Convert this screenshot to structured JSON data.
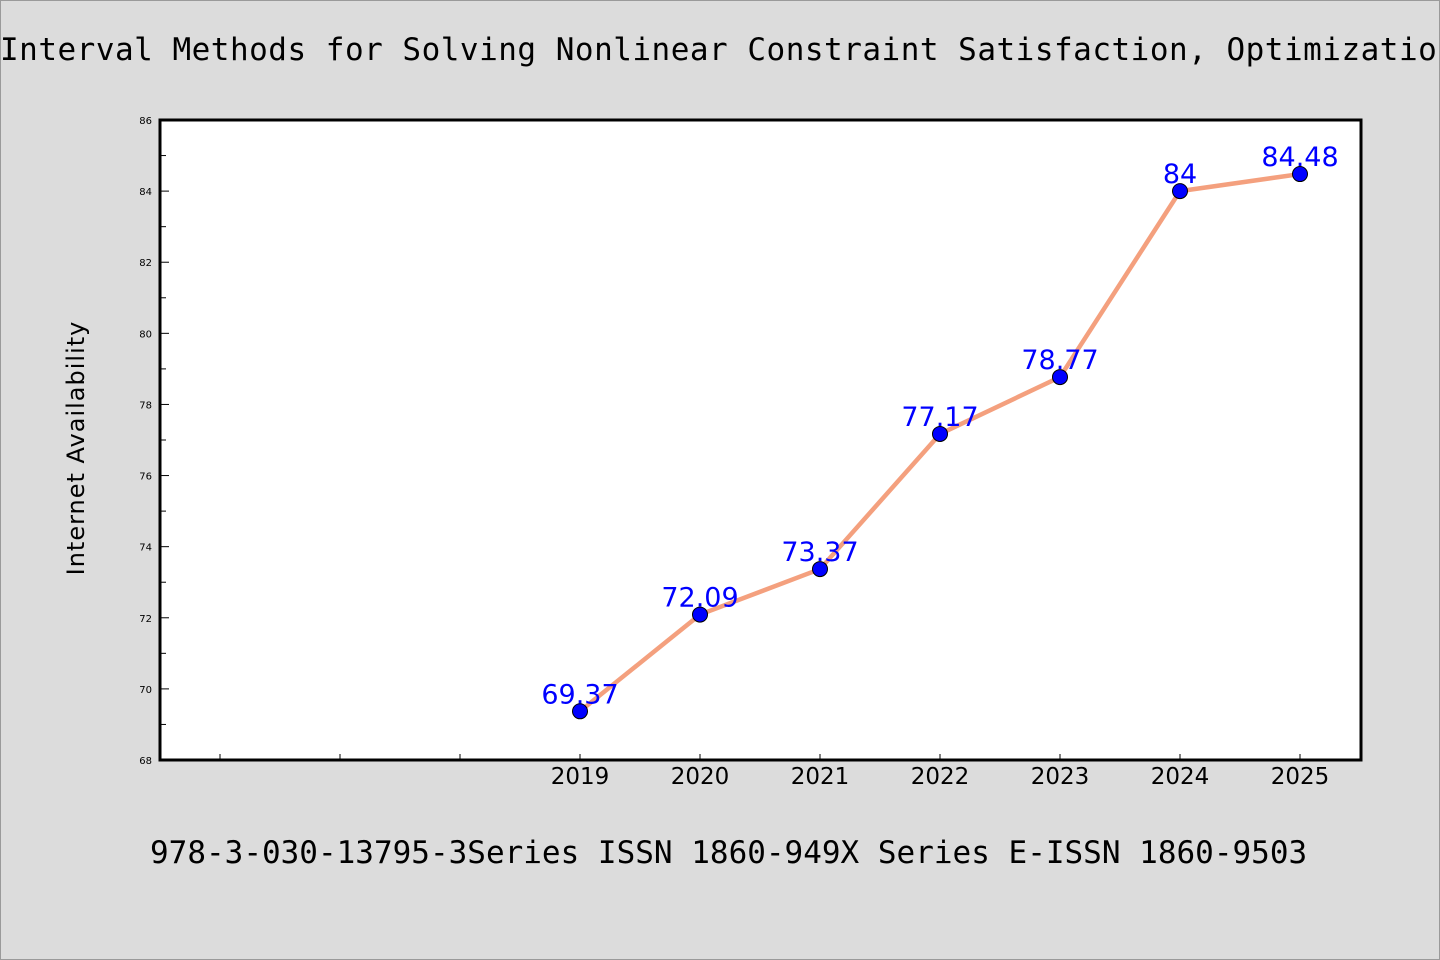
{
  "title": "Interval Methods for Solving Nonlinear Constraint Satisfaction, Optimization and",
  "footer": "978-3-030-13795-3Series ISSN 1860-949X Series E-ISSN 1860-9503",
  "colors": {
    "background": "#dcdcdc",
    "plot_background": "#ffffff",
    "line": "#f4a07e",
    "marker": "#0000ff",
    "data_label": "#0000ff"
  },
  "chart_data": {
    "type": "line",
    "title": "Interval Methods for Solving Nonlinear Constraint Satisfaction, Optimization and",
    "xlabel": "",
    "ylabel": "Internet Availability",
    "categories": [
      "",
      "",
      "",
      "2019",
      "2020",
      "2021",
      "2022",
      "2023",
      "2024",
      "2025"
    ],
    "x_labels_shown": [
      "2019",
      "2020",
      "2021",
      "2022",
      "2023",
      "2024",
      "2025"
    ],
    "series": [
      {
        "values": [
          null,
          null,
          null,
          69.37,
          72.09,
          73.37,
          77.17,
          78.77,
          84,
          84.48
        ],
        "labels": [
          "",
          "",
          "",
          "69.37",
          "72.09",
          "73.37",
          "77.17",
          "78.77",
          "84",
          "84.48"
        ]
      }
    ],
    "ylim": [
      68,
      86
    ],
    "yticks": [
      68,
      70,
      72,
      74,
      76,
      78,
      80,
      82,
      84,
      86
    ],
    "grid": false,
    "legend": "none"
  }
}
